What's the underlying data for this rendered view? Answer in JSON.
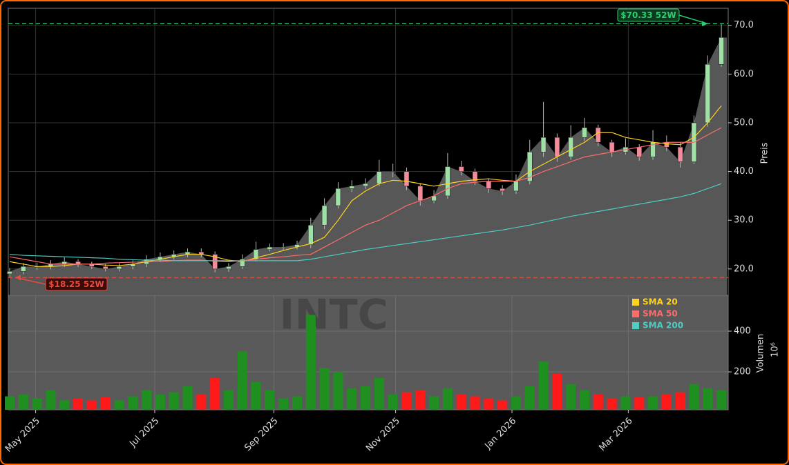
{
  "chart_data": {
    "type": "candlestick",
    "watermark": "INTC",
    "categories": [
      null,
      null,
      null,
      null,
      null,
      null,
      null,
      null,
      null,
      null,
      null,
      null,
      null,
      null,
      null,
      null,
      null,
      null,
      null,
      null,
      null,
      null,
      null,
      null,
      null,
      null,
      null,
      null,
      null,
      null,
      null,
      null,
      null,
      null,
      null,
      null,
      null,
      null,
      null,
      null,
      null,
      null,
      null,
      null,
      null,
      null,
      null,
      null,
      null,
      null,
      null,
      null,
      null
    ],
    "xlim": [
      -0.1,
      52.5
    ],
    "xticks": [
      {
        "value": 1.9,
        "label": "May 2025"
      },
      {
        "value": 10.6,
        "label": "Jul 2025"
      },
      {
        "value": 19.3,
        "label": "Sep 2025"
      },
      {
        "value": 28.2,
        "label": "Nov 2025"
      },
      {
        "value": 36.7,
        "label": "Jan 2026"
      },
      {
        "value": 45.2,
        "label": "Mar 2026"
      }
    ],
    "open": [
      19,
      19.5,
      20.5,
      20.5,
      21,
      21.5,
      21,
      20.5,
      20,
      20.5,
      21,
      22,
      22.5,
      23,
      23.5,
      23,
      20,
      20.5,
      22,
      24,
      24.5,
      24.5,
      25,
      29,
      33,
      36.5,
      37,
      37.5,
      40,
      40,
      37,
      34,
      35,
      41,
      40,
      38,
      36.5,
      36,
      38,
      44,
      47,
      43,
      47,
      49,
      46,
      44,
      45,
      43,
      46,
      45,
      42,
      50,
      62
    ],
    "high": [
      20.2,
      21.2,
      21.3,
      21.8,
      22.4,
      22,
      21.5,
      21,
      21.2,
      21.8,
      22.8,
      23.4,
      23.8,
      24.2,
      24.2,
      23.6,
      21.2,
      23,
      25.6,
      25.2,
      25.3,
      25.8,
      30.5,
      34.5,
      37.8,
      38.2,
      38.6,
      42.4,
      41.6,
      40.8,
      37.6,
      36.2,
      43.8,
      42.2,
      40.6,
      38.6,
      37.2,
      39.4,
      46.5,
      54.3,
      47.8,
      49.5,
      51,
      49.6,
      46.5,
      46.8,
      45.6,
      48.5,
      47.4,
      46,
      51.5,
      63.8,
      70.33
    ],
    "low": [
      18.25,
      18.9,
      19.8,
      19.9,
      20.4,
      20.4,
      20,
      19.5,
      19.5,
      19.9,
      20.4,
      21.4,
      21.9,
      22.4,
      22.4,
      19.3,
      19.4,
      20,
      21.5,
      23.6,
      23.8,
      24,
      24.3,
      28.2,
      32.4,
      35.8,
      36.4,
      37,
      38.8,
      36.2,
      33,
      33.5,
      34.4,
      39.2,
      37.2,
      35.6,
      35.2,
      35.4,
      37.4,
      43,
      42,
      42.4,
      46.3,
      45.2,
      43,
      43.5,
      42.2,
      42.4,
      44.2,
      40.8,
      41.5,
      49.2,
      61.5
    ],
    "close": [
      19.5,
      20.5,
      20.5,
      21,
      21.5,
      21,
      20.5,
      20,
      20.5,
      21,
      22,
      22.5,
      23,
      23.5,
      23,
      20,
      20.5,
      22,
      24,
      24.5,
      24.5,
      25,
      29,
      33,
      36.5,
      37,
      37.5,
      40,
      40,
      37,
      34,
      35,
      41,
      40,
      38,
      36.5,
      36,
      38,
      44,
      47,
      43,
      47,
      49,
      46,
      44,
      45,
      43,
      46,
      45,
      42,
      50,
      62,
      67.5
    ],
    "up_color": "#1f8f1f",
    "down_color": "#ff1a1a",
    "area_color": "#5c5c5c",
    "ylim": [
      14.6,
      73.5
    ],
    "yticks": [
      {
        "value": 20,
        "label": "20.0"
      },
      {
        "value": 30,
        "label": "30.0"
      },
      {
        "value": 40,
        "label": "40.0"
      },
      {
        "value": 50,
        "label": "50.0"
      },
      {
        "value": 60,
        "label": "60.0"
      },
      {
        "value": 70,
        "label": "70.0"
      }
    ],
    "ylabel": "Preis",
    "grid": true,
    "series": [
      {
        "name": "SMA 20",
        "color": "#ffd21f",
        "values": [
          21.5,
          21,
          20.5,
          20.5,
          20.7,
          21,
          21,
          20.8,
          20.7,
          21,
          21.5,
          22,
          22.5,
          23,
          23,
          22.5,
          21.8,
          21.5,
          22.3,
          23,
          23.8,
          24.5,
          25.2,
          26.5,
          30,
          34,
          36,
          37.5,
          38.2,
          38,
          37.5,
          37,
          37.5,
          38,
          38.3,
          38.5,
          38.2,
          38,
          40,
          41.5,
          43,
          44.5,
          46,
          48,
          48,
          47,
          46.5,
          46,
          45.7,
          45.5,
          47,
          50,
          53.5
        ]
      },
      {
        "name": "SMA 50",
        "color": "#ff6b6b",
        "values": [
          22.5,
          22,
          21.5,
          21,
          21,
          21,
          21,
          21.2,
          21.3,
          21.4,
          21.5,
          21.5,
          21.7,
          21.8,
          21.8,
          21.6,
          21.5,
          21.7,
          22,
          22.3,
          22.5,
          22.8,
          23,
          24.5,
          26,
          27.5,
          29,
          30,
          31.5,
          33,
          34,
          35,
          36.5,
          37.5,
          37.8,
          38,
          38,
          38,
          38.8,
          40,
          41,
          42,
          43,
          43.5,
          44,
          44.5,
          45,
          45.5,
          46,
          46,
          46,
          47.5,
          49
        ]
      },
      {
        "name": "SMA 200",
        "color": "#4ecdc4",
        "values": [
          23,
          22.8,
          22.7,
          22.6,
          22.5,
          22.4,
          22.3,
          22.2,
          22,
          21.9,
          21.8,
          21.8,
          21.7,
          21.7,
          21.7,
          21.7,
          21.7,
          21.7,
          21.7,
          21.7,
          21.7,
          21.7,
          22,
          22.5,
          23,
          23.5,
          24,
          24.4,
          24.8,
          25.2,
          25.6,
          26,
          26.4,
          26.8,
          27.2,
          27.6,
          28,
          28.5,
          29,
          29.6,
          30.2,
          30.8,
          31.3,
          31.8,
          32.3,
          32.8,
          33.3,
          33.8,
          34.3,
          34.8,
          35.5,
          36.5,
          37.5
        ]
      }
    ],
    "annotations": [
      {
        "text": "$70.33 52W",
        "value": 70.33,
        "color": "#2ecc71"
      },
      {
        "text": "$18.25 52W",
        "value": 18.25,
        "color": "#e74c3c"
      }
    ],
    "volume": {
      "label": "Volumen",
      "unit": "10⁶",
      "ylim": [
        14,
        576
      ],
      "yticks": [
        200,
        400
      ],
      "values": [
        80,
        90,
        70,
        110,
        60,
        70,
        60,
        75,
        60,
        80,
        110,
        90,
        100,
        130,
        90,
        170,
        110,
        300,
        150,
        110,
        70,
        80,
        480,
        220,
        200,
        120,
        130,
        170,
        90,
        100,
        110,
        80,
        120,
        90,
        80,
        70,
        60,
        80,
        130,
        250,
        190,
        140,
        110,
        90,
        70,
        80,
        75,
        80,
        90,
        100,
        140,
        120,
        110
      ]
    }
  }
}
